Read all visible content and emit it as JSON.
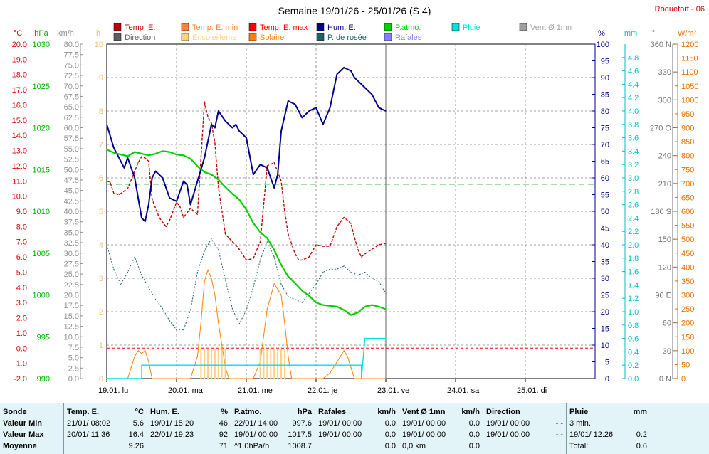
{
  "header": {
    "title": "Semaine 19/01/26 - 25/01/26 (S 4)",
    "station": "Roquefort - 06"
  },
  "colors": {
    "temp": "#c00000",
    "temp_min": "#ff8040",
    "temp_max": "#ff0000",
    "hum": "#00008b",
    "patmo": "#00d000",
    "pluie": "#00e0e0",
    "vent": "#a0a0a0",
    "direction": "#606060",
    "ensoleillement": "#ffd080",
    "solaire": "#ff8000",
    "rosee": "#206060",
    "rafales": "#8080ff",
    "grid": "#808080",
    "limit": "#ff0000",
    "ref": "#00b000"
  },
  "legend": [
    {
      "label": "Temp. E.",
      "color": "#c00000"
    },
    {
      "label": "Temp. E. min",
      "color": "#ff8040"
    },
    {
      "label": "Temp. E. max",
      "color": "#ff0000"
    },
    {
      "label": "Hum. E.",
      "color": "#00008b"
    },
    {
      "label": "P.atmo.",
      "color": "#00d000"
    },
    {
      "label": "Pluie",
      "color": "#00e0e0"
    },
    {
      "label": "Vent Ø 1mn",
      "color": "#a0a0a0"
    },
    {
      "label": "Direction",
      "color": "#606060"
    },
    {
      "label": "Ensoleilleme",
      "color": "#ffd080"
    },
    {
      "label": "Solaire",
      "color": "#ff8000"
    },
    {
      "label": "P. de rosée",
      "color": "#206060"
    },
    {
      "label": "Rafales",
      "color": "#8080ff"
    }
  ],
  "chart_data": {
    "type": "line",
    "x_ticks": [
      "19.01. lu",
      "20.01. ma",
      "21.01. me",
      "22.01. je",
      "23.01. ve",
      "24.01. sa",
      "25.01. di"
    ],
    "xlim_days": [
      0,
      7
    ],
    "grid": true,
    "axes": {
      "temp": {
        "unit": "°C",
        "min": -2,
        "max": 20,
        "ticks": [
          "20.0",
          "19.0",
          "18.0",
          "17.0",
          "16.0",
          "15.0",
          "14.0",
          "13.0",
          "12.0",
          "11.0",
          "10.0",
          "9.0",
          "8.0",
          "7.0",
          "6.0",
          "5.0",
          "4.0",
          "3.0",
          "2.0",
          "1.0",
          "0.0",
          "-1.0",
          "-2.0"
        ]
      },
      "pressure": {
        "unit": "hPa",
        "min": 990,
        "max": 1030,
        "ticks": [
          "1030",
          "1025",
          "1020",
          "1015",
          "1010",
          "1005",
          "1000",
          "995",
          "990"
        ]
      },
      "wind": {
        "unit": "km/h",
        "min": 0,
        "max": 80,
        "ticks": [
          "80.0",
          "77.5",
          "75.0",
          "72.5",
          "70.0",
          "67.5",
          "65.0",
          "62.5",
          "60.0",
          "57.5",
          "55.0",
          "52.5",
          "50.0",
          "47.5",
          "45.0",
          "42.5",
          "40.0",
          "37.5",
          "35.0",
          "32.5",
          "30.0",
          "27.5",
          "25.0",
          "22.5",
          "20.0",
          "17.5",
          "15.0",
          "12.5",
          "10.0",
          "7.5",
          "5.0",
          "2.5",
          "0.0"
        ]
      },
      "sun_hours": {
        "unit": "h",
        "min": 0,
        "max": 10,
        "ticks": [
          "10",
          "9",
          "8",
          "7",
          "6",
          "5",
          "4",
          "3",
          "2",
          "1",
          "0"
        ]
      },
      "humidity": {
        "unit": "%",
        "min": 0,
        "max": 100,
        "ticks": [
          "100",
          "95",
          "90",
          "85",
          "80",
          "75",
          "70",
          "65",
          "60",
          "55",
          "50",
          "45",
          "40",
          "35",
          "30",
          "25",
          "20",
          "15",
          "10",
          "5",
          "0"
        ]
      },
      "rain": {
        "unit": "mm",
        "min": 0,
        "max": 5,
        "ticks": [
          "4.8",
          "4.6",
          "4.4",
          "4.2",
          "4.0",
          "3.8",
          "3.6",
          "3.4",
          "3.2",
          "3.0",
          "2.8",
          "2.6",
          "2.4",
          "2.2",
          "2.0",
          "1.8",
          "1.6",
          "1.4",
          "1.2",
          "1.0",
          "0.8",
          "0.6",
          "0.4",
          "0.2",
          "0.0"
        ]
      },
      "direction": {
        "unit": "°",
        "min": 0,
        "max": 360,
        "ticks": [
          "360 N",
          "330",
          "300",
          "270 O",
          "240",
          "210",
          "180 S",
          "150",
          "120",
          "90  E",
          "60",
          "30",
          "0 N"
        ]
      },
      "solar": {
        "unit": "W/m²",
        "min": 0,
        "max": 1200,
        "ticks": [
          "1200",
          "1150",
          "1100",
          "1050",
          "1000",
          "950",
          "900",
          "850",
          "800",
          "750",
          "700",
          "650",
          "600",
          "550",
          "500",
          "450",
          "400",
          "350",
          "300",
          "250",
          "200",
          "150",
          "100",
          "50",
          "0"
        ]
      }
    },
    "reference_lines": {
      "temp_zero": 0.0,
      "pressure_ref": 1013.25
    },
    "series": [
      {
        "name": "Temp. E.",
        "axis": "temp",
        "x": [
          0,
          0.05,
          0.1,
          0.18,
          0.3,
          0.45,
          0.5,
          0.55,
          0.6,
          0.65,
          0.75,
          0.85,
          0.9,
          0.95,
          1.0,
          1.05,
          1.1,
          1.2,
          1.3,
          1.4,
          1.45,
          1.5,
          1.55,
          1.6,
          1.7,
          1.8,
          1.85,
          1.9,
          2.0,
          2.1,
          2.2,
          2.3,
          2.4,
          2.5,
          2.55,
          2.6,
          2.7,
          2.75,
          2.8,
          2.9,
          3.0,
          3.1,
          3.2,
          3.3,
          3.4,
          3.5,
          3.55,
          3.6,
          3.65,
          3.7,
          3.8,
          3.9,
          4.0
        ],
        "values": [
          11.0,
          10.9,
          10.2,
          10.1,
          10.5,
          12.2,
          12.6,
          12.5,
          12.3,
          9.8,
          8.6,
          8.0,
          8.4,
          9.0,
          9.6,
          9.3,
          8.6,
          9.2,
          8.8,
          16.2,
          15.2,
          14.8,
          13.5,
          10.6,
          7.5,
          7.0,
          6.8,
          6.5,
          5.8,
          5.9,
          7.0,
          12.0,
          12.2,
          11.0,
          9.0,
          7.5,
          6.2,
          5.8,
          5.8,
          6.0,
          6.8,
          6.7,
          6.7,
          8.0,
          8.6,
          8.2,
          7.3,
          6.5,
          6.0,
          6.2,
          6.5,
          6.8,
          6.9
        ]
      },
      {
        "name": "Hum. E.",
        "axis": "humidity",
        "x": [
          0,
          0.1,
          0.2,
          0.25,
          0.3,
          0.4,
          0.5,
          0.55,
          0.6,
          0.65,
          0.7,
          0.8,
          0.9,
          1.0,
          1.1,
          1.15,
          1.2,
          1.3,
          1.4,
          1.5,
          1.55,
          1.6,
          1.7,
          1.75,
          1.8,
          1.85,
          1.9,
          2.0,
          2.1,
          2.2,
          2.3,
          2.4,
          2.45,
          2.5,
          2.6,
          2.7,
          2.8,
          2.9,
          3.0,
          3.1,
          3.2,
          3.3,
          3.4,
          3.5,
          3.55,
          3.6,
          3.7,
          3.8,
          3.9,
          4.0
        ],
        "values": [
          76,
          69,
          65,
          63,
          66,
          60,
          48,
          47,
          52,
          60,
          62,
          60,
          54,
          53,
          59,
          58,
          52,
          59,
          66,
          76,
          75,
          80,
          77,
          76,
          75,
          76,
          74,
          72,
          61,
          64,
          63,
          57,
          61,
          74,
          83,
          82,
          78,
          80,
          81,
          76,
          81,
          91,
          93,
          92,
          90,
          89,
          87,
          85,
          81,
          80
        ]
      },
      {
        "name": "P.atmo.",
        "axis": "pressure",
        "x": [
          0,
          0.1,
          0.2,
          0.3,
          0.4,
          0.5,
          0.6,
          0.7,
          0.8,
          0.9,
          1.0,
          1.1,
          1.2,
          1.3,
          1.4,
          1.5,
          1.6,
          1.7,
          1.8,
          1.9,
          2.0,
          2.1,
          2.2,
          2.3,
          2.4,
          2.5,
          2.6,
          2.7,
          2.8,
          2.9,
          3.0,
          3.1,
          3.2,
          3.3,
          3.4,
          3.5,
          3.6,
          3.7,
          3.8,
          3.9,
          4.0
        ],
        "values": [
          1017.4,
          1017.0,
          1016.8,
          1016.6,
          1017.1,
          1016.9,
          1016.7,
          1016.9,
          1017.2,
          1017.1,
          1016.8,
          1016.7,
          1016.3,
          1015.4,
          1014.7,
          1014.4,
          1013.8,
          1012.9,
          1012.1,
          1011.4,
          1010.2,
          1008.6,
          1007.5,
          1006.8,
          1005.4,
          1003.6,
          1002.2,
          1001.4,
          1000.5,
          999.9,
          999.1,
          998.8,
          998.7,
          998.6,
          998.2,
          997.6,
          997.9,
          998.6,
          998.8,
          998.6,
          998.3
        ]
      },
      {
        "name": "P. de rosée",
        "axis": "temp",
        "x": [
          0,
          0.1,
          0.2,
          0.3,
          0.4,
          0.5,
          0.6,
          0.7,
          0.8,
          0.9,
          1.0,
          1.1,
          1.2,
          1.3,
          1.4,
          1.5,
          1.6,
          1.7,
          1.8,
          1.9,
          2.0,
          2.1,
          2.2,
          2.3,
          2.4,
          2.5,
          2.6,
          2.7,
          2.8,
          2.9,
          3.0,
          3.1,
          3.2,
          3.3,
          3.4,
          3.5,
          3.6,
          3.7,
          3.8,
          3.9,
          4.0
        ],
        "values": [
          6.8,
          5.2,
          4.2,
          5.0,
          6.0,
          4.8,
          4.0,
          3.2,
          2.6,
          1.8,
          1.2,
          1.2,
          2.5,
          5.0,
          6.4,
          7.2,
          6.5,
          4.5,
          2.6,
          1.6,
          2.5,
          4.0,
          5.8,
          7.0,
          6.0,
          4.2,
          3.4,
          3.2,
          3.0,
          3.6,
          4.2,
          5.0,
          5.2,
          5.2,
          5.4,
          5.0,
          4.8,
          5.0,
          4.6,
          4.4,
          3.6
        ]
      },
      {
        "name": "Solaire",
        "axis": "solar",
        "x": [
          0,
          0.3,
          0.35,
          0.4,
          0.45,
          0.5,
          0.55,
          0.6,
          0.65,
          1.2,
          1.3,
          1.35,
          1.4,
          1.45,
          1.5,
          1.55,
          1.6,
          1.65,
          1.7,
          1.75,
          2.1,
          2.2,
          2.3,
          2.4,
          2.5,
          2.55,
          2.6,
          2.65,
          3.0,
          3.1,
          3.2,
          3.3,
          3.4,
          3.45,
          3.5,
          3.55,
          4.0
        ],
        "values": [
          0,
          0,
          40,
          80,
          100,
          90,
          100,
          60,
          0,
          0,
          80,
          200,
          350,
          390,
          360,
          300,
          200,
          120,
          40,
          0,
          0,
          60,
          250,
          340,
          300,
          200,
          80,
          0,
          0,
          0,
          20,
          60,
          100,
          80,
          40,
          0,
          0
        ]
      },
      {
        "name": "Ensoleilleme",
        "axis": "sun_hours",
        "x": [
          1.35,
          1.4,
          1.45,
          1.5,
          1.55,
          1.6,
          1.65,
          1.7,
          2.2,
          2.25,
          2.3,
          2.35,
          2.4,
          2.45,
          2.5,
          2.55
        ],
        "values": [
          0.9,
          0.9,
          0.9,
          0.9,
          0.9,
          0.9,
          0.9,
          0.9,
          0.9,
          0.9,
          0.9,
          0.9,
          0.9,
          0.9,
          0.9,
          0.9
        ]
      },
      {
        "name": "Pluie",
        "axis": "rain",
        "x": [
          0,
          0.5,
          0.5,
          3.65,
          3.65,
          3.7,
          3.7,
          4.0
        ],
        "values": [
          0,
          0,
          0.2,
          0.2,
          0,
          0.6,
          0.6,
          0.6
        ]
      }
    ]
  },
  "stats": {
    "sonde": {
      "title": "Sonde",
      "rows": [
        "Valeur Min",
        "Valeur Max",
        "Moyenne"
      ]
    },
    "temp": {
      "title": "Temp. E.",
      "unit": "°C",
      "rows": [
        [
          "21/01/ 08:02",
          "5.6"
        ],
        [
          "20/01/ 11:36",
          "16.4"
        ],
        [
          "",
          "9.26"
        ]
      ]
    },
    "hum": {
      "title": "Hum. E.",
      "unit": "%",
      "rows": [
        [
          "19/01/ 15:20",
          "46"
        ],
        [
          "22/01/ 19:23",
          "92"
        ],
        [
          "",
          "71"
        ]
      ]
    },
    "patmo": {
      "title": "P.atmo.",
      "unit": "hPa",
      "rows": [
        [
          "22/01/ 14:00",
          "997.6"
        ],
        [
          "19/01/ 00:00",
          "1017.5"
        ],
        [
          "^1.0hPa/h",
          "1008.7"
        ]
      ]
    },
    "rafales": {
      "title": "Rafales",
      "unit": "km/h",
      "rows": [
        [
          "19/01/ 00:00",
          "0.0"
        ],
        [
          "19/01/ 00:00",
          "0.0"
        ],
        [
          "",
          "0.0"
        ]
      ]
    },
    "vent": {
      "title": "Vent Ø 1mn",
      "unit": "km/h",
      "rows": [
        [
          "19/01/ 00:00",
          "0.0"
        ],
        [
          "19/01/ 00:00",
          "0.0"
        ],
        [
          "0,0 km",
          "0.0"
        ]
      ]
    },
    "direction": {
      "title": "Direction",
      "unit": "",
      "rows": [
        [
          "19/01/ 00:00",
          "- -"
        ],
        [
          "19/01/ 00:00",
          "- -"
        ],
        [
          "",
          ""
        ]
      ]
    },
    "pluie": {
      "title": "Pluie",
      "unit": "mm",
      "rows": [
        [
          "3 min.",
          ""
        ],
        [
          "19/01/ 12:26",
          "0.2"
        ],
        [
          "Total:",
          "0.6"
        ]
      ]
    }
  }
}
